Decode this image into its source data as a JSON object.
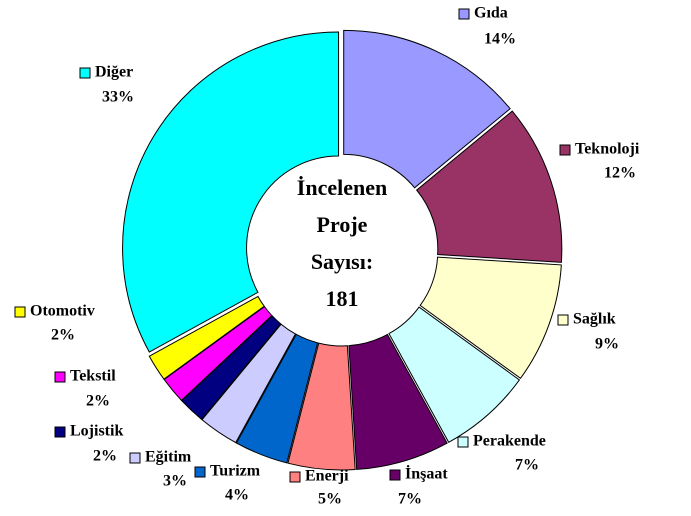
{
  "chart_data": {
    "type": "donut",
    "categories": [
      "Gıda",
      "Teknoloji",
      "Sağlık",
      "Perakende",
      "İnşaat",
      "Enerji",
      "Turizm",
      "Eğitim",
      "Lojistik",
      "Tekstil",
      "Otomotiv",
      "Diğer"
    ],
    "values": [
      14,
      12,
      9,
      7,
      7,
      5,
      4,
      3,
      2,
      2,
      2,
      33
    ],
    "value_labels": [
      "14%",
      "12%",
      "9%",
      "7%",
      "7%",
      "5%",
      "4%",
      "3%",
      "2%",
      "2%",
      "2%",
      "33%"
    ],
    "colors": [
      "#9999ff",
      "#993366",
      "#ffffcc",
      "#ccffff",
      "#660066",
      "#ff8080",
      "#0066cc",
      "#ccccff",
      "#000080",
      "#ff00ff",
      "#ffff00",
      "#00ffff"
    ],
    "center_text": [
      "İncelenen",
      "Proje",
      "Sayısı:",
      "181"
    ]
  }
}
